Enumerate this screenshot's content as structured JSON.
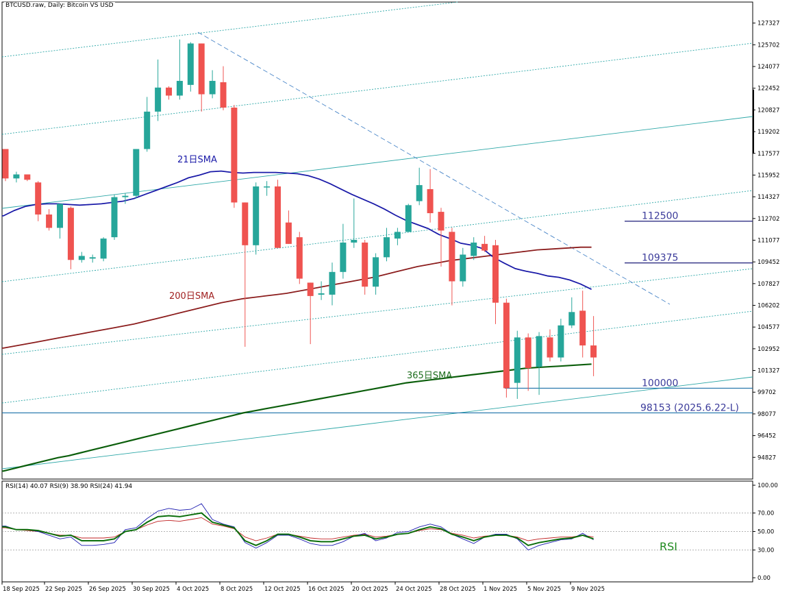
{
  "chart_data": {
    "type": "candlestick",
    "title": "BTCUSD.raw, Daily:  Bitcoin VS USD",
    "y_axis": {
      "ticks": [
        127327,
        125702,
        124077,
        122452,
        120827,
        119202,
        117577,
        115952,
        114327,
        112702,
        111077,
        109452,
        107827,
        106202,
        104577,
        102952,
        101327,
        99702,
        98077,
        96452,
        94827
      ],
      "range": [
        93200,
        128900
      ]
    },
    "x_axis": {
      "tick_labels": [
        "18 Sep 2025",
        "22 Sep 2025",
        "26 Sep 2025",
        "30 Sep 2025",
        "4 Oct 2025",
        "8 Oct 2025",
        "12 Oct 2025",
        "16 Oct 2025",
        "20 Oct 2025",
        "24 Oct 2025",
        "28 Oct 2025",
        "1 Nov 2025",
        "5 Nov 2025",
        "9 Nov 2025"
      ]
    },
    "candles": [
      {
        "o": 117900,
        "h": 117900,
        "l": 115500,
        "c": 115700
      },
      {
        "o": 115700,
        "h": 116200,
        "l": 115400,
        "c": 116000
      },
      {
        "o": 116000,
        "h": 116000,
        "l": 115500,
        "c": 115600
      },
      {
        "o": 115400,
        "h": 115500,
        "l": 112500,
        "c": 113000
      },
      {
        "o": 113000,
        "h": 113400,
        "l": 111800,
        "c": 112000
      },
      {
        "o": 112000,
        "h": 113800,
        "l": 111200,
        "c": 113800
      },
      {
        "o": 113500,
        "h": 113600,
        "l": 108900,
        "c": 109600
      },
      {
        "o": 109600,
        "h": 110200,
        "l": 109400,
        "c": 109900
      },
      {
        "o": 109700,
        "h": 110000,
        "l": 109400,
        "c": 109800
      },
      {
        "o": 109700,
        "h": 111300,
        "l": 109500,
        "c": 111200
      },
      {
        "o": 111300,
        "h": 114500,
        "l": 111100,
        "c": 114300
      },
      {
        "o": 114300,
        "h": 114600,
        "l": 113800,
        "c": 114400
      },
      {
        "o": 114400,
        "h": 117900,
        "l": 114200,
        "c": 117900
      },
      {
        "o": 117900,
        "h": 121800,
        "l": 117700,
        "c": 120700
      },
      {
        "o": 120700,
        "h": 124600,
        "l": 120000,
        "c": 122500
      },
      {
        "o": 122500,
        "h": 122600,
        "l": 121600,
        "c": 121900
      },
      {
        "o": 121900,
        "h": 126100,
        "l": 121600,
        "c": 123000
      },
      {
        "o": 122700,
        "h": 125900,
        "l": 122200,
        "c": 125800
      },
      {
        "o": 125800,
        "h": 125800,
        "l": 120700,
        "c": 122000
      },
      {
        "o": 122000,
        "h": 123800,
        "l": 121700,
        "c": 123000
      },
      {
        "o": 122900,
        "h": 124100,
        "l": 120800,
        "c": 121000
      },
      {
        "o": 121000,
        "h": 121200,
        "l": 113500,
        "c": 113900
      },
      {
        "o": 113900,
        "h": 113900,
        "l": 103100,
        "c": 110700
      },
      {
        "o": 110700,
        "h": 115400,
        "l": 110000,
        "c": 115100
      },
      {
        "o": 115100,
        "h": 115500,
        "l": 114400,
        "c": 115100
      },
      {
        "o": 115100,
        "h": 115600,
        "l": 110500,
        "c": 110500
      },
      {
        "o": 112400,
        "h": 113300,
        "l": 110800,
        "c": 110800
      },
      {
        "o": 111300,
        "h": 111700,
        "l": 107800,
        "c": 108200
      },
      {
        "o": 107900,
        "h": 107900,
        "l": 103300,
        "c": 106900
      },
      {
        "o": 107000,
        "h": 108000,
        "l": 106600,
        "c": 107100
      },
      {
        "o": 107000,
        "h": 109400,
        "l": 106200,
        "c": 108700
      },
      {
        "o": 108700,
        "h": 112300,
        "l": 108200,
        "c": 110900
      },
      {
        "o": 110900,
        "h": 114200,
        "l": 110500,
        "c": 111100
      },
      {
        "o": 110900,
        "h": 111100,
        "l": 107000,
        "c": 107600
      },
      {
        "o": 107600,
        "h": 110100,
        "l": 107000,
        "c": 109800
      },
      {
        "o": 109800,
        "h": 112000,
        "l": 109500,
        "c": 111300
      },
      {
        "o": 111200,
        "h": 112000,
        "l": 110700,
        "c": 111700
      },
      {
        "o": 111700,
        "h": 113800,
        "l": 111700,
        "c": 113700
      },
      {
        "o": 114000,
        "h": 116500,
        "l": 113700,
        "c": 115200
      },
      {
        "o": 114900,
        "h": 116400,
        "l": 112400,
        "c": 113100
      },
      {
        "o": 113200,
        "h": 113500,
        "l": 109100,
        "c": 111800
      },
      {
        "o": 111700,
        "h": 112000,
        "l": 106200,
        "c": 108000
      },
      {
        "o": 108000,
        "h": 110500,
        "l": 107600,
        "c": 110000
      },
      {
        "o": 109900,
        "h": 111300,
        "l": 109600,
        "c": 110900
      },
      {
        "o": 110800,
        "h": 111400,
        "l": 110200,
        "c": 110300
      },
      {
        "o": 110700,
        "h": 111100,
        "l": 104800,
        "c": 106400
      },
      {
        "o": 106400,
        "h": 106700,
        "l": 99300,
        "c": 100000
      },
      {
        "o": 100400,
        "h": 104300,
        "l": 99200,
        "c": 103800
      },
      {
        "o": 103800,
        "h": 104100,
        "l": 99800,
        "c": 101500
      },
      {
        "o": 101600,
        "h": 104200,
        "l": 99500,
        "c": 103900
      },
      {
        "o": 103800,
        "h": 104400,
        "l": 102000,
        "c": 102300
      },
      {
        "o": 102300,
        "h": 105200,
        "l": 102000,
        "c": 104700
      },
      {
        "o": 104700,
        "h": 106800,
        "l": 104500,
        "c": 105700
      },
      {
        "o": 105800,
        "h": 107300,
        "l": 102300,
        "c": 103200
      },
      {
        "o": 103200,
        "h": 105400,
        "l": 100900,
        "c": 102300
      }
    ],
    "sma21": [
      112900,
      113300,
      113600,
      113750,
      113800,
      113800,
      113750,
      113700,
      113750,
      113800,
      113900,
      114000,
      114200,
      114500,
      114800,
      115100,
      115400,
      115750,
      115950,
      116200,
      116250,
      116150,
      116100,
      116150,
      116150,
      116150,
      116100,
      116050,
      115900,
      115650,
      115300,
      114900,
      114500,
      114150,
      113800,
      113400,
      112950,
      112550,
      112250,
      111950,
      111500,
      111200,
      110850,
      110700,
      110450,
      109800,
      109350,
      108950,
      108750,
      108600,
      108400,
      108300,
      108100,
      107800,
      107400
    ],
    "sma200": [
      103000,
      103150,
      103300,
      103450,
      103600,
      103750,
      103900,
      104050,
      104200,
      104350,
      104500,
      104650,
      104800,
      105000,
      105200,
      105400,
      105600,
      105800,
      106000,
      106200,
      106400,
      106550,
      106700,
      106800,
      106900,
      107000,
      107100,
      107250,
      107400,
      107550,
      107700,
      107850,
      108000,
      108150,
      108300,
      108500,
      108700,
      108900,
      109100,
      109250,
      109400,
      109550,
      109650,
      109750,
      109850,
      109950,
      110050,
      110150,
      110250,
      110350,
      110400,
      110450,
      110500,
      110550,
      110550
    ],
    "sma365": [
      93800,
      94000,
      94200,
      94400,
      94600,
      94800,
      94950,
      95150,
      95350,
      95550,
      95750,
      95950,
      96150,
      96350,
      96550,
      96750,
      96950,
      97150,
      97350,
      97550,
      97750,
      97950,
      98150,
      98300,
      98450,
      98600,
      98750,
      98900,
      99050,
      99200,
      99350,
      99500,
      99650,
      99800,
      99950,
      100100,
      100250,
      100400,
      100500,
      100600,
      100700,
      100800,
      100900,
      101000,
      101100,
      101200,
      101300,
      101400,
      101500,
      101550,
      101600,
      101650,
      101700,
      101750,
      101800
    ],
    "levels": [
      {
        "label": "112500",
        "value": 112500,
        "color": "#1c1c78"
      },
      {
        "label": "109375",
        "value": 109375,
        "color": "#1c1c78"
      },
      {
        "label": "100000",
        "value": 100000,
        "color": "#1a6fa8"
      },
      {
        "label": "98153 (2025.6.22-L)",
        "value": 98153,
        "color": "#1a6fa8"
      }
    ],
    "series_labels": {
      "sma21": "21日SMA",
      "sma200": "200日SMA",
      "sma365": "365日SMA"
    },
    "rsi_header": "RSI(14) 40.07 RSI(9) 38.90 RSI(24) 41.94",
    "rsi_axis_ticks": [
      "100.00",
      "70.00",
      "50.00",
      "30.00",
      "0.00"
    ],
    "rsi_label": "RSI",
    "rsi14": [
      55,
      52,
      52,
      51,
      48,
      45,
      46,
      40,
      40,
      40,
      42,
      50,
      52,
      60,
      66,
      67,
      66,
      68,
      70,
      60,
      57,
      54,
      40,
      35,
      40,
      47,
      47,
      44,
      40,
      39,
      39,
      42,
      45,
      46,
      42,
      44,
      47,
      48,
      52,
      55,
      53,
      47,
      44,
      40,
      44,
      46,
      46,
      43,
      35,
      38,
      40,
      42,
      43,
      46,
      42
    ],
    "rsi9": [
      56,
      52,
      52,
      50,
      46,
      42,
      44,
      35,
      35,
      36,
      38,
      52,
      54,
      64,
      72,
      75,
      73,
      74,
      80,
      63,
      58,
      55,
      38,
      32,
      38,
      46,
      46,
      42,
      37,
      35,
      35,
      39,
      45,
      48,
      40,
      43,
      49,
      50,
      55,
      58,
      55,
      47,
      42,
      37,
      44,
      47,
      47,
      42,
      30,
      35,
      38,
      41,
      42,
      48,
      41
    ],
    "rsi24": [
      54,
      52,
      51,
      50,
      48,
      46,
      46,
      43,
      43,
      43,
      44,
      50,
      52,
      57,
      61,
      62,
      61,
      63,
      65,
      58,
      56,
      53,
      44,
      40,
      43,
      47,
      47,
      45,
      43,
      42,
      42,
      44,
      46,
      47,
      44,
      45,
      47,
      48,
      51,
      53,
      52,
      48,
      46,
      43,
      45,
      46,
      46,
      44,
      40,
      42,
      43,
      44,
      44,
      46,
      44
    ]
  }
}
